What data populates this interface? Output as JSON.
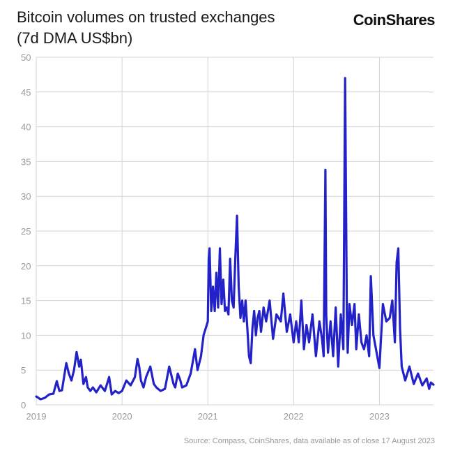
{
  "header": {
    "title_line1": "Bitcoin volumes on trusted exchanges",
    "title_line2": "(7d DMA US$bn)",
    "logo_text": "CoinShares"
  },
  "footer": {
    "source": "Source: Compass, CoinShares, data available as of close 17 August 2023"
  },
  "colors": {
    "line": "#2222c8",
    "grid": "#d4d4d4",
    "axis_text": "#9a9a9a"
  },
  "chart_data": {
    "type": "line",
    "title": "Bitcoin volumes on trusted exchanges (7d DMA US$bn)",
    "xlabel": "",
    "ylabel": "",
    "xlim": [
      2019.0,
      2023.63
    ],
    "ylim": [
      0,
      50
    ],
    "x_ticks": [
      2019,
      2020,
      2021,
      2022,
      2023
    ],
    "x_tick_labels": [
      "2019",
      "2020",
      "2021",
      "2022",
      "2023"
    ],
    "y_ticks": [
      0,
      5,
      10,
      15,
      20,
      25,
      30,
      35,
      40,
      45,
      50
    ],
    "y_tick_labels": [
      "0",
      "5",
      "10",
      "15",
      "20",
      "25",
      "30",
      "35",
      "40",
      "45",
      "50"
    ],
    "grid": true,
    "legend": "none",
    "series": [
      {
        "x": [
          2019.0,
          2019.05,
          2019.1,
          2019.15,
          2019.2,
          2019.24,
          2019.27,
          2019.3,
          2019.35,
          2019.38,
          2019.41,
          2019.44,
          2019.47,
          2019.5,
          2019.52,
          2019.55,
          2019.58,
          2019.6,
          2019.63,
          2019.66,
          2019.7,
          2019.75,
          2019.8,
          2019.85,
          2019.88,
          2019.92,
          2019.96,
          2020.0,
          2020.05,
          2020.1,
          2020.15,
          2020.18,
          2020.2,
          2020.22,
          2020.25,
          2020.28,
          2020.33,
          2020.37,
          2020.4,
          2020.45,
          2020.5,
          2020.55,
          2020.6,
          2020.62,
          2020.65,
          2020.68,
          2020.7,
          2020.75,
          2020.8,
          2020.85,
          2020.88,
          2020.92,
          2020.95,
          2021.0,
          2021.01,
          2021.02,
          2021.04,
          2021.06,
          2021.08,
          2021.1,
          2021.12,
          2021.14,
          2021.16,
          2021.18,
          2021.2,
          2021.22,
          2021.24,
          2021.26,
          2021.28,
          2021.3,
          2021.32,
          2021.34,
          2021.36,
          2021.38,
          2021.4,
          2021.42,
          2021.44,
          2021.46,
          2021.48,
          2021.5,
          2021.52,
          2021.54,
          2021.56,
          2021.58,
          2021.6,
          2021.62,
          2021.65,
          2021.68,
          2021.72,
          2021.76,
          2021.8,
          2021.85,
          2021.88,
          2021.92,
          2021.96,
          2022.0,
          2022.03,
          2022.06,
          2022.09,
          2022.12,
          2022.15,
          2022.18,
          2022.22,
          2022.26,
          2022.3,
          2022.33,
          2022.35,
          2022.37,
          2022.38,
          2022.4,
          2022.43,
          2022.46,
          2022.49,
          2022.52,
          2022.55,
          2022.58,
          2022.6,
          2022.62,
          2022.63,
          2022.65,
          2022.68,
          2022.71,
          2022.73,
          2022.76,
          2022.79,
          2022.82,
          2022.85,
          2022.88,
          2022.9,
          2022.93,
          2022.96,
          2023.0,
          2023.04,
          2023.08,
          2023.12,
          2023.15,
          2023.18,
          2023.2,
          2023.22,
          2023.24,
          2023.26,
          2023.3,
          2023.35,
          2023.4,
          2023.45,
          2023.5,
          2023.55,
          2023.58,
          2023.6,
          2023.63
        ],
        "values": [
          1.2,
          0.8,
          1.0,
          1.5,
          1.6,
          3.4,
          2.0,
          2.1,
          6.0,
          4.5,
          3.5,
          5.0,
          7.6,
          5.5,
          6.5,
          3.0,
          4.0,
          2.5,
          2.0,
          2.5,
          1.8,
          2.8,
          2.0,
          4.0,
          1.5,
          2.0,
          1.7,
          2.0,
          3.5,
          2.8,
          4.0,
          6.6,
          5.5,
          3.5,
          2.5,
          4.0,
          5.5,
          3.0,
          2.5,
          2.0,
          2.3,
          5.5,
          3.0,
          2.5,
          4.5,
          3.5,
          2.5,
          2.8,
          4.5,
          8.0,
          5.0,
          7.0,
          10.0,
          12.0,
          21.0,
          22.5,
          13.5,
          17.0,
          13.5,
          19.0,
          14.0,
          22.5,
          14.5,
          18.0,
          13.5,
          14.0,
          13.0,
          21.0,
          15.0,
          14.0,
          21.0,
          27.2,
          17.0,
          12.5,
          15.0,
          12.0,
          15.0,
          11.0,
          7.0,
          6.0,
          11.0,
          13.5,
          10.0,
          12.5,
          13.5,
          10.5,
          14.0,
          12.0,
          15.0,
          9.5,
          13.0,
          12.0,
          16.0,
          10.5,
          13.0,
          9.0,
          12.0,
          9.0,
          15.0,
          8.0,
          11.5,
          9.0,
          13.0,
          7.0,
          12.0,
          9.5,
          7.0,
          33.8,
          13.0,
          7.5,
          12.0,
          7.0,
          14.0,
          5.5,
          13.0,
          8.0,
          47.0,
          13.0,
          7.5,
          14.5,
          11.5,
          14.5,
          8.0,
          13.0,
          9.0,
          8.0,
          10.0,
          7.0,
          18.5,
          10.0,
          8.0,
          5.3,
          14.5,
          12.0,
          12.5,
          15.0,
          9.0,
          20.5,
          22.5,
          11.0,
          5.5,
          3.5,
          5.5,
          3.0,
          4.5,
          2.8,
          3.8,
          2.3,
          3.2,
          2.9
        ]
      }
    ]
  }
}
